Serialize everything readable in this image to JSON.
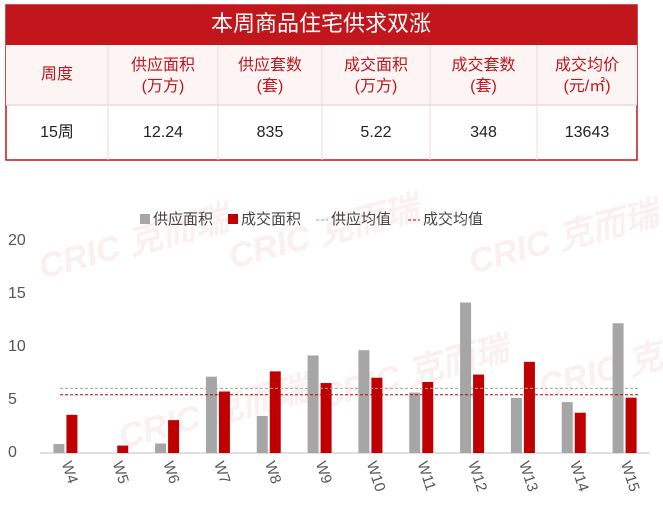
{
  "table": {
    "title": "本周商品住宅供求双涨",
    "header": [
      [
        "周度"
      ],
      [
        "供应面积",
        "(万方)"
      ],
      [
        "供应套数",
        "(套)"
      ],
      [
        "成交面积",
        "(万方)"
      ],
      [
        "成交套数",
        "(套)"
      ],
      [
        "成交均价",
        "(元/㎡)"
      ]
    ],
    "rows": [
      [
        "15周",
        "12.24",
        "835",
        "5.22",
        "348",
        "13643"
      ]
    ]
  },
  "watermark": "CRIC 克而瑞",
  "chart_data": {
    "type": "bar",
    "categories": [
      "W4",
      "W5",
      "W6",
      "W7",
      "W8",
      "W9",
      "W10",
      "W11",
      "W12",
      "W13",
      "W14",
      "W15"
    ],
    "series": [
      {
        "name": "供应面积",
        "color": "#a6a6a6",
        "values": [
          0.85,
          0,
          0.9,
          7.2,
          3.5,
          9.2,
          9.7,
          5.7,
          14.2,
          5.2,
          4.8,
          12.24
        ]
      },
      {
        "name": "成交面积",
        "color": "#c00000",
        "values": [
          3.6,
          0.7,
          3.1,
          5.8,
          7.7,
          6.6,
          7.1,
          6.7,
          7.4,
          8.6,
          3.8,
          5.22
        ]
      }
    ],
    "reference_lines": [
      {
        "name": "供应均值",
        "value": 6.1,
        "color": "#a6a6a6"
      },
      {
        "name": "成交均值",
        "value": 5.5,
        "color": "#c00000"
      }
    ],
    "ylim": [
      0,
      20
    ],
    "yticks": [
      0,
      5,
      10,
      15,
      20
    ]
  }
}
